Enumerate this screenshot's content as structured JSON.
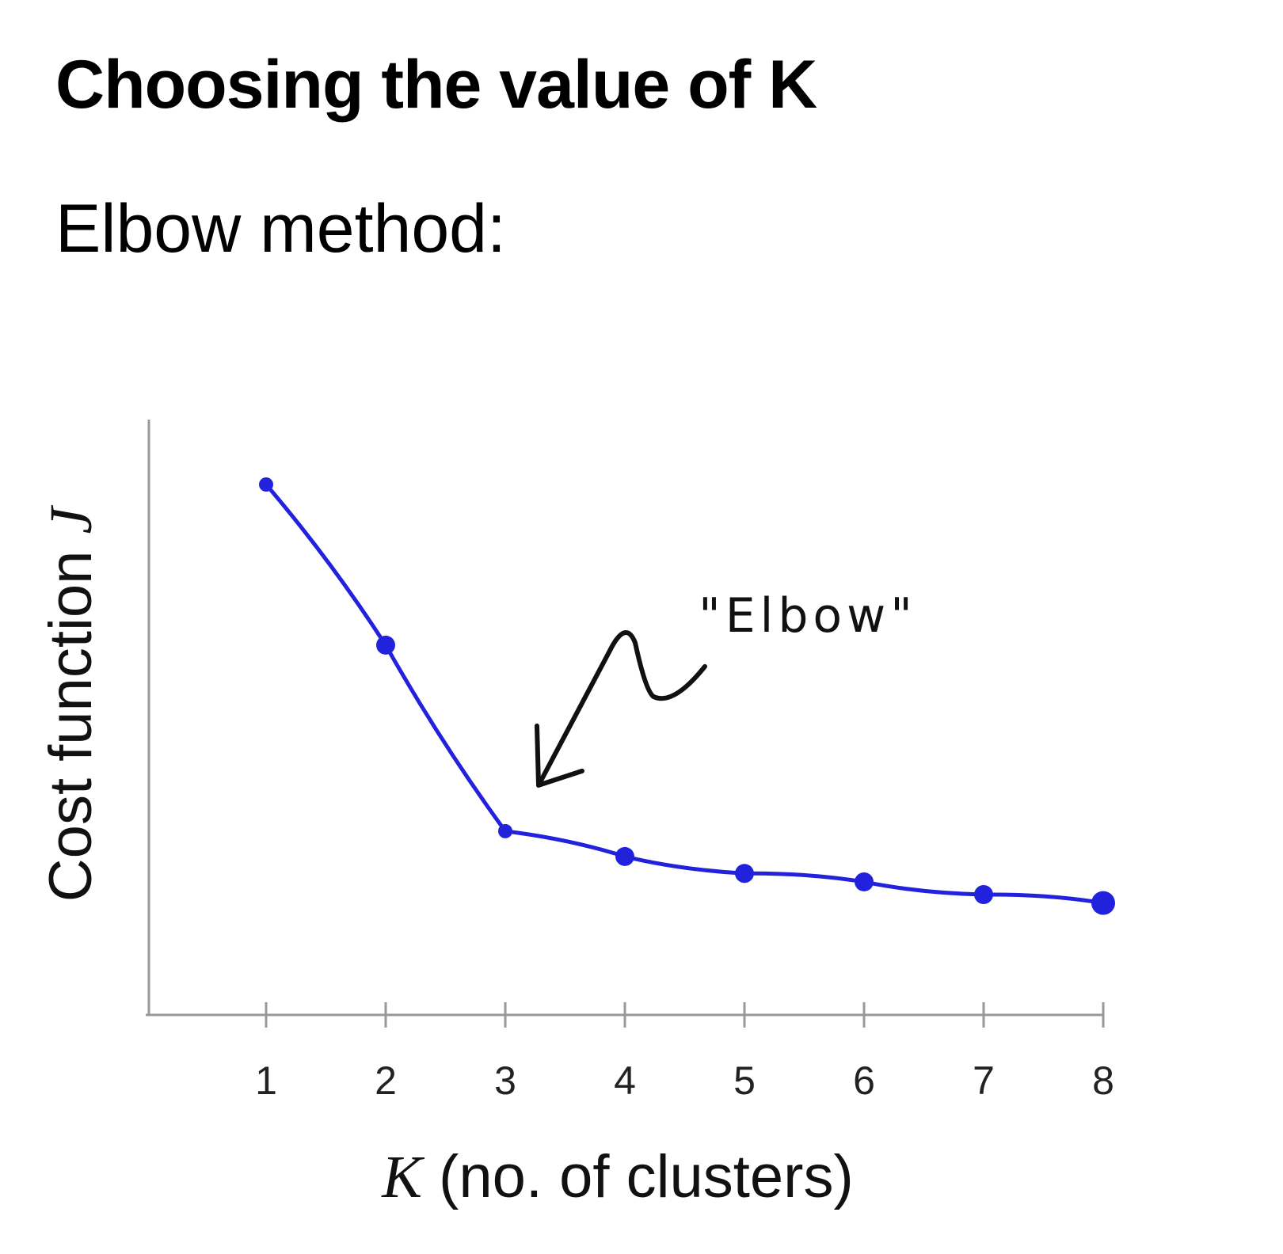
{
  "slide": {
    "title": "Choosing the value of K",
    "subtitle": "Elbow method:"
  },
  "chart_data": {
    "type": "line",
    "x": [
      1,
      2,
      3,
      4,
      5,
      6,
      7,
      8
    ],
    "series": [
      {
        "values": [
          1.0,
          0.62,
          0.18,
          0.12,
          0.08,
          0.06,
          0.03,
          0.01
        ]
      }
    ],
    "x_ticks": [
      "1",
      "2",
      "3",
      "4",
      "5",
      "6",
      "7",
      "8"
    ],
    "xlabel_var": "K",
    "xlabel_rest": " (no. of clusters)",
    "ylabel_text": "Cost function ",
    "ylabel_var": "J",
    "y_tick_labels": false,
    "grid": false,
    "annotation": {
      "text": "\"Elbow\"",
      "points_to_x": 3
    },
    "colors": {
      "line": "#2222dd",
      "axis": "#999999",
      "annotation": "#111111"
    }
  }
}
